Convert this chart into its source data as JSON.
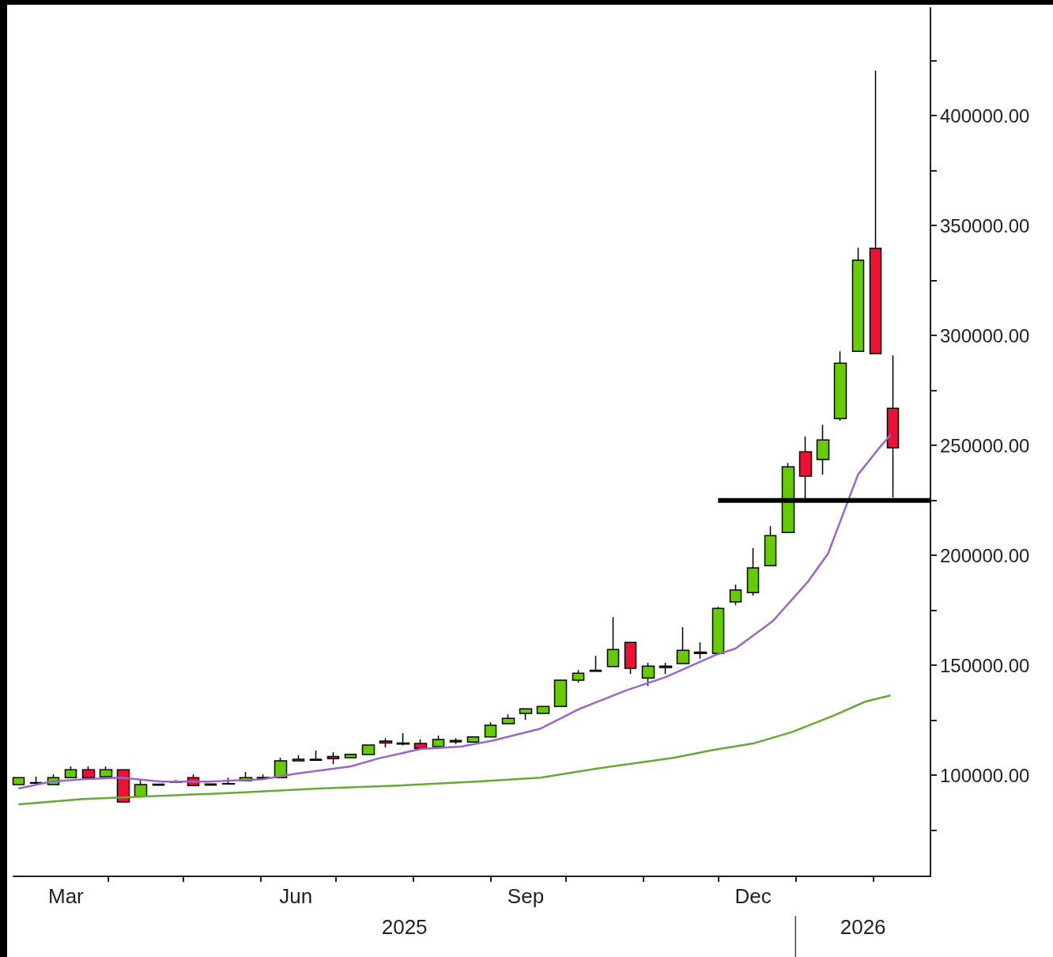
{
  "chart_data": {
    "type": "candlestick",
    "x": [
      "2025-02-24",
      "2025-03-03",
      "2025-03-10",
      "2025-03-17",
      "2025-03-24",
      "2025-03-31",
      "2025-04-07",
      "2025-04-14",
      "2025-04-21",
      "2025-04-28",
      "2025-05-05",
      "2025-05-12",
      "2025-05-19",
      "2025-05-26",
      "2025-06-02",
      "2025-06-09",
      "2025-06-16",
      "2025-06-23",
      "2025-06-30",
      "2025-07-07",
      "2025-07-14",
      "2025-07-21",
      "2025-07-28",
      "2025-08-04",
      "2025-08-11",
      "2025-08-18",
      "2025-08-25",
      "2025-09-01",
      "2025-09-08",
      "2025-09-15",
      "2025-09-22",
      "2025-09-29",
      "2025-10-06",
      "2025-10-13",
      "2025-10-20",
      "2025-10-27",
      "2025-11-03",
      "2025-11-10",
      "2025-11-17",
      "2025-11-24",
      "2025-12-01",
      "2025-12-08",
      "2025-12-15",
      "2025-12-22",
      "2025-12-29",
      "2026-01-05",
      "2026-01-12",
      "2026-01-19",
      "2026-01-26",
      "2026-02-02",
      "2026-02-09"
    ],
    "ohlc": [
      [
        95700,
        98900,
        95700,
        98900
      ],
      [
        96600,
        99300,
        96400,
        96400
      ],
      [
        95700,
        100400,
        95700,
        98900
      ],
      [
        98900,
        104000,
        98900,
        102500
      ],
      [
        102500,
        104000,
        98900,
        98900
      ],
      [
        99300,
        104000,
        99300,
        102500
      ],
      [
        102500,
        102500,
        87800,
        87800
      ],
      [
        90300,
        97500,
        90300,
        95700
      ],
      [
        95500,
        96200,
        95500,
        95900
      ],
      [
        96800,
        97800,
        96800,
        97000
      ],
      [
        98900,
        100400,
        95300,
        95300
      ],
      [
        95500,
        96000,
        95500,
        96000
      ],
      [
        96000,
        98900,
        96000,
        96200
      ],
      [
        97500,
        101500,
        97500,
        98900
      ],
      [
        99000,
        100400,
        98500,
        98500
      ],
      [
        98900,
        108000,
        98900,
        106500
      ],
      [
        106500,
        109000,
        106500,
        107200
      ],
      [
        107200,
        111200,
        106500,
        106800
      ],
      [
        108500,
        110500,
        105000,
        107500
      ],
      [
        108000,
        109500,
        108000,
        109500
      ],
      [
        109400,
        113700,
        109400,
        113700
      ],
      [
        115500,
        116900,
        112600,
        114600
      ],
      [
        114600,
        119100,
        113500,
        114200
      ],
      [
        114400,
        116200,
        112200,
        112200
      ],
      [
        113000,
        118000,
        113000,
        116200
      ],
      [
        115800,
        116900,
        114200,
        115200
      ],
      [
        115100,
        117400,
        115100,
        117400
      ],
      [
        117400,
        124100,
        117400,
        122700
      ],
      [
        123400,
        127700,
        123400,
        125900
      ],
      [
        128100,
        130200,
        125200,
        130200
      ],
      [
        128100,
        131300,
        128100,
        131300
      ],
      [
        131300,
        143200,
        131300,
        143200
      ],
      [
        143200,
        147800,
        142100,
        146400
      ],
      [
        147700,
        154300,
        147300,
        147300
      ],
      [
        149400,
        171900,
        149400,
        157200
      ],
      [
        160400,
        160400,
        146000,
        148600
      ],
      [
        144200,
        151100,
        140600,
        149600
      ],
      [
        149600,
        151100,
        146000,
        149000
      ],
      [
        150800,
        167300,
        150800,
        156800
      ],
      [
        156000,
        160400,
        152900,
        155400
      ],
      [
        155400,
        176600,
        155400,
        175900
      ],
      [
        178800,
        186700,
        177300,
        184200
      ],
      [
        183100,
        203300,
        181700,
        194300
      ],
      [
        195300,
        213300,
        195300,
        209000
      ],
      [
        210400,
        242100,
        210400,
        240300
      ],
      [
        247100,
        254000,
        224100,
        236000
      ],
      [
        243600,
        259400,
        236700,
        252500
      ],
      [
        262200,
        292800,
        261200,
        287400
      ],
      [
        292800,
        339900,
        292800,
        334200
      ],
      [
        339600,
        420500,
        291700,
        291700
      ],
      [
        266900,
        291000,
        226300,
        248900
      ]
    ],
    "colors": [
      "#66cc00",
      "#ee1133",
      "#66cc00",
      "#66cc00",
      "#ee1133",
      "#66cc00",
      "#ee1133",
      "#66cc00",
      "#66cc00",
      "#66cc00",
      "#ee1133",
      "#66cc00",
      "#66cc00",
      "#66cc00",
      "#ee1133",
      "#66cc00",
      "#66cc00",
      "#ee1133",
      "#ee1133",
      "#66cc00",
      "#66cc00",
      "#ee1133",
      "#ee1133",
      "#ee1133",
      "#66cc00",
      "#ee1133",
      "#66cc00",
      "#66cc00",
      "#66cc00",
      "#66cc00",
      "#66cc00",
      "#66cc00",
      "#66cc00",
      "#ee1133",
      "#66cc00",
      "#ee1133",
      "#66cc00",
      "#ee1133",
      "#66cc00",
      "#ee1133",
      "#66cc00",
      "#66cc00",
      "#66cc00",
      "#66cc00",
      "#66cc00",
      "#ee1133",
      "#66cc00",
      "#66cc00",
      "#66cc00",
      "#ee1133",
      "#ee1133"
    ],
    "series": [
      {
        "type": "line",
        "color": "#9966cc",
        "x": [
          "2025-02-24",
          "2025-03-09",
          "2025-03-22",
          "2025-04-06",
          "2025-04-22",
          "2025-05-11",
          "2025-06-02",
          "2025-06-15",
          "2025-07-07",
          "2025-07-19",
          "2025-08-04",
          "2025-08-20",
          "2025-09-02",
          "2025-09-21",
          "2025-10-06",
          "2025-10-25",
          "2025-11-10",
          "2025-11-30",
          "2025-12-08",
          "2025-12-23",
          "2026-01-06",
          "2026-01-14",
          "2026-01-20",
          "2026-01-26",
          "2026-02-03",
          "2026-02-08"
        ],
        "values": [
          93900,
          97100,
          98200,
          98900,
          97100,
          97100,
          98200,
          100700,
          104000,
          107900,
          111900,
          113000,
          115800,
          121200,
          129900,
          138500,
          144600,
          154700,
          157600,
          170200,
          188100,
          200800,
          218700,
          236700,
          248200,
          254700
        ]
      },
      {
        "type": "line",
        "color": "#66aa33",
        "x": [
          "2025-02-24",
          "2025-03-22",
          "2025-04-22",
          "2025-05-24",
          "2025-06-24",
          "2025-07-26",
          "2025-08-26",
          "2025-09-21",
          "2025-10-13",
          "2025-11-13",
          "2025-11-29",
          "2025-12-15",
          "2025-12-31",
          "2026-01-16",
          "2026-01-29",
          "2026-02-08"
        ],
        "values": [
          86700,
          89200,
          90600,
          92100,
          93900,
          95300,
          97100,
          98900,
          102900,
          107900,
          111500,
          114400,
          119800,
          127000,
          133500,
          136300
        ]
      },
      {
        "type": "line",
        "color": "#000000",
        "x": [
          "2025-12-01",
          "2026-02-24"
        ],
        "values": [
          225000,
          225000
        ]
      }
    ],
    "marker": "none",
    "line_style": "solid",
    "xlim": [
      "2025-02-22",
      "2026-02-24"
    ],
    "xticks": [
      {
        "value": "2025-03-15",
        "label": "Mar"
      },
      {
        "value": "2025-04-01",
        "label": null
      },
      {
        "value": "2025-05-01",
        "label": null
      },
      {
        "value": "2025-06-01",
        "label": null
      },
      {
        "value": "2025-06-15",
        "label": "Jun"
      },
      {
        "value": "2025-07-01",
        "label": null
      },
      {
        "value": "2025-08-01",
        "label": null
      },
      {
        "value": "2025-09-01",
        "label": null
      },
      {
        "value": "2025-09-15",
        "label": "Sep"
      },
      {
        "value": "2025-10-01",
        "label": null
      },
      {
        "value": "2025-11-01",
        "label": null
      },
      {
        "value": "2025-12-01",
        "label": null
      },
      {
        "value": "2025-12-15",
        "label": "Dec"
      },
      {
        "value": "2026-01-01",
        "label": null
      },
      {
        "value": "2026-02-01",
        "label": null
      }
    ],
    "ylim": [
      54000,
      449000
    ],
    "yticks": [
      {
        "value": 75000,
        "label": null
      },
      {
        "value": 100000,
        "label": "100000.00"
      },
      {
        "value": 125000,
        "label": null
      },
      {
        "value": 150000,
        "label": "150000.00"
      },
      {
        "value": 175000,
        "label": null
      },
      {
        "value": 200000,
        "label": "200000.00"
      },
      {
        "value": 225000,
        "label": null
      },
      {
        "value": 250000,
        "label": "250000.00"
      },
      {
        "value": 275000,
        "label": null
      },
      {
        "value": 300000,
        "label": "300000.00"
      },
      {
        "value": 325000,
        "label": null
      },
      {
        "value": 350000,
        "label": "350000.00"
      },
      {
        "value": 375000,
        "label": null
      },
      {
        "value": 400000,
        "label": "400000.00"
      },
      {
        "value": 425000,
        "label": null
      }
    ],
    "annotations": [
      "2025",
      "2026"
    ]
  }
}
